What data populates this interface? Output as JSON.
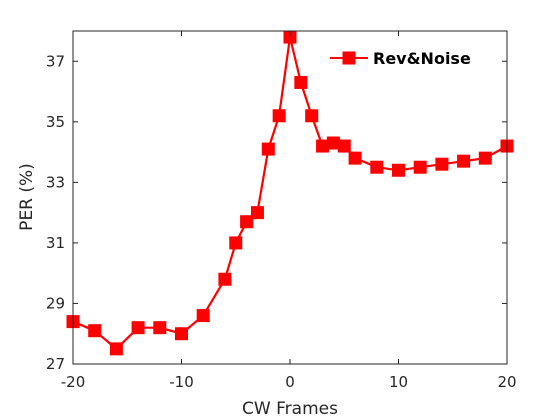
{
  "chart_data": {
    "type": "line",
    "title": "",
    "xlabel": "CW Frames",
    "ylabel": "PER (%)",
    "xlim": [
      -20,
      20
    ],
    "ylim": [
      27,
      38
    ],
    "xticks": [
      -20,
      -10,
      0,
      10,
      20
    ],
    "yticks": [
      27,
      29,
      31,
      33,
      35,
      37
    ],
    "xtick_labels": [
      "-20",
      "-10",
      "0",
      "10",
      "20"
    ],
    "ytick_labels": [
      "27",
      "29",
      "31",
      "33",
      "35",
      "37"
    ],
    "grid": false,
    "legend_position": "top-right",
    "series": [
      {
        "name": "Rev&Noise",
        "color": "#ff0000",
        "marker": "square",
        "x": [
          -20,
          -18,
          -16,
          -14,
          -12,
          -10,
          -8,
          -6,
          -5,
          -4,
          -3,
          -2,
          -1,
          0,
          1,
          2,
          3,
          4,
          5,
          6,
          8,
          10,
          12,
          14,
          16,
          18,
          20
        ],
        "y": [
          28.4,
          28.1,
          27.5,
          28.2,
          28.2,
          28.0,
          28.6,
          29.8,
          31.0,
          31.7,
          32.0,
          34.1,
          35.2,
          37.8,
          36.3,
          35.2,
          34.2,
          34.3,
          34.2,
          33.8,
          33.5,
          33.4,
          33.5,
          33.6,
          33.7,
          33.8,
          34.2
        ]
      }
    ]
  }
}
